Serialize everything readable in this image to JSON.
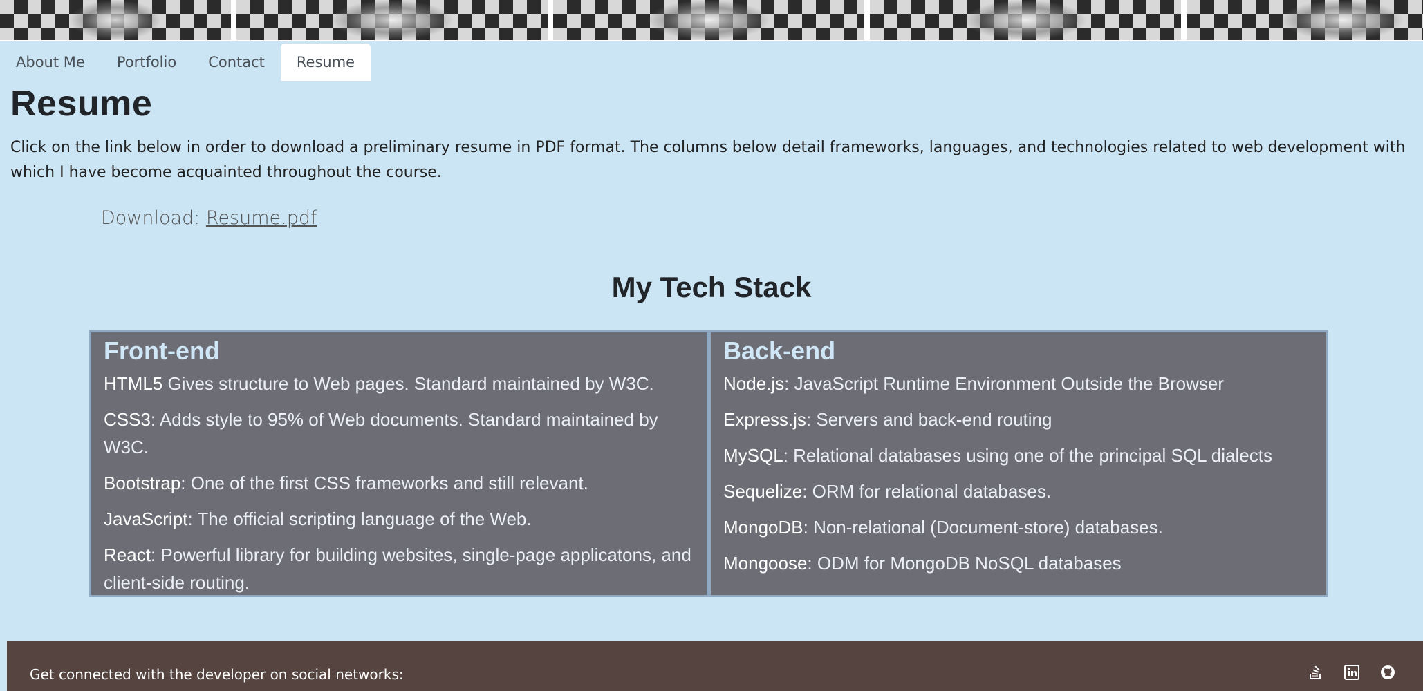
{
  "nav": {
    "items": [
      {
        "label": "About Me"
      },
      {
        "label": "Portfolio"
      },
      {
        "label": "Contact"
      },
      {
        "label": "Resume"
      }
    ]
  },
  "page": {
    "title": "Resume",
    "intro": "Click on the link below in order to download a preliminary resume in PDF format. The columns below detail frameworks, languages, and technologies related to web development with which I have become acquainted throughout the course.",
    "download_label": "Download: ",
    "download_link": "Resume.pdf"
  },
  "stack": {
    "title": "My Tech Stack",
    "frontend": {
      "heading": "Front-end",
      "items": [
        {
          "name": "HTML5",
          "desc": " Gives structure to Web pages. Standard maintained by W3C."
        },
        {
          "name": "CSS3",
          "desc": ": Adds style to 95% of Web documents. Standard maintained by W3C."
        },
        {
          "name": "Bootstrap",
          "desc": ": One of the first CSS frameworks and still relevant."
        },
        {
          "name": "JavaScript",
          "desc": ": The official scripting language of the Web."
        },
        {
          "name": "React",
          "desc": ": Powerful library for building websites, single-page applicatons, and client-side routing."
        }
      ]
    },
    "backend": {
      "heading": "Back-end",
      "items": [
        {
          "name": "Node.js",
          "desc": ": JavaScript Runtime Environment Outside the Browser"
        },
        {
          "name": "Express.js",
          "desc": ": Servers and back-end routing"
        },
        {
          "name": "MySQL",
          "desc": ": Relational databases using one of the principal SQL dialects"
        },
        {
          "name": "Sequelize",
          "desc": ": ORM for relational databases."
        },
        {
          "name": "MongoDB",
          "desc": ": Non-relational (Document-store) databases."
        },
        {
          "name": "Mongoose",
          "desc": ": ODM for MongoDB NoSQL databases"
        }
      ]
    }
  },
  "footer": {
    "text": "Get connected with the developer on social networks:",
    "icons": [
      "stack-overflow-icon",
      "linkedin-icon",
      "github-icon"
    ]
  },
  "colors": {
    "page_bg": "#cce5f4",
    "panel_bg": "#6d6d76",
    "panel_border": "#8fa9c2",
    "heading_accent": "#cfe6f6",
    "footer_bg": "#55443f"
  }
}
